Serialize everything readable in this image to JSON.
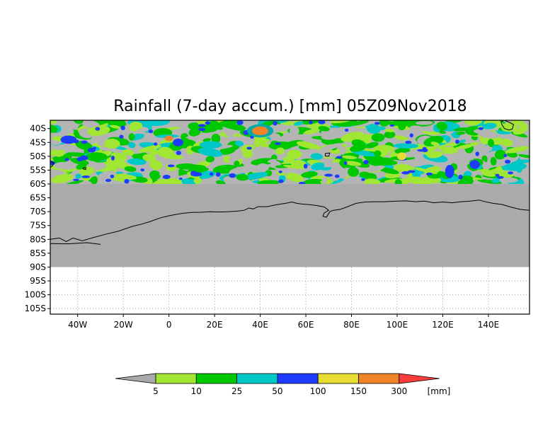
{
  "title": "Rainfall (7-day accum.) [mm] 05Z09Nov2018",
  "map": {
    "lon_range": [
      -52,
      158
    ],
    "lat_range": [
      -37,
      -107
    ],
    "data_lat_bounds": [
      -37,
      -60
    ],
    "nodata_lat_bounds": [
      -60,
      -90
    ],
    "nodata_color": "#aaaaaa",
    "background_color": "#ffffff",
    "lat_ticks": [
      {
        "value": -40,
        "label": "40S"
      },
      {
        "value": -45,
        "label": "45S"
      },
      {
        "value": -50,
        "label": "50S"
      },
      {
        "value": -55,
        "label": "55S"
      },
      {
        "value": -60,
        "label": "60S"
      },
      {
        "value": -65,
        "label": "65S"
      },
      {
        "value": -70,
        "label": "70S"
      },
      {
        "value": -75,
        "label": "75S"
      },
      {
        "value": -80,
        "label": "80S"
      },
      {
        "value": -85,
        "label": "85S"
      },
      {
        "value": -90,
        "label": "90S"
      },
      {
        "value": -95,
        "label": "95S"
      },
      {
        "value": -100,
        "label": "100S"
      },
      {
        "value": -105,
        "label": "105S"
      }
    ],
    "lon_ticks": [
      {
        "value": -40,
        "label": "40W"
      },
      {
        "value": -20,
        "label": "20W"
      },
      {
        "value": 0,
        "label": "0"
      },
      {
        "value": 20,
        "label": "20E"
      },
      {
        "value": 40,
        "label": "40E"
      },
      {
        "value": 60,
        "label": "60E"
      },
      {
        "value": 80,
        "label": "80E"
      },
      {
        "value": 100,
        "label": "100E"
      },
      {
        "value": 120,
        "label": "120E"
      },
      {
        "value": 140,
        "label": "140E"
      }
    ],
    "coastline_antarctica": [
      [
        -52,
        -80
      ],
      [
        -48,
        -79.5
      ],
      [
        -45,
        -80.8
      ],
      [
        -42,
        -79.5
      ],
      [
        -38,
        -80.5
      ],
      [
        -33,
        -79.3
      ],
      [
        -28,
        -78.2
      ],
      [
        -22,
        -77
      ],
      [
        -16,
        -75.3
      ],
      [
        -12,
        -74.5
      ],
      [
        -8,
        -73.5
      ],
      [
        -4,
        -72.3
      ],
      [
        0,
        -71.5
      ],
      [
        3,
        -71
      ],
      [
        6,
        -70.6
      ],
      [
        10,
        -70.3
      ],
      [
        14,
        -70.2
      ],
      [
        18,
        -70
      ],
      [
        22,
        -70.1
      ],
      [
        26,
        -70
      ],
      [
        30,
        -69.8
      ],
      [
        33,
        -69.5
      ],
      [
        35,
        -68.7
      ],
      [
        37,
        -69
      ],
      [
        39,
        -68.2
      ],
      [
        43,
        -68.2
      ],
      [
        47,
        -67.5
      ],
      [
        51,
        -67
      ],
      [
        54,
        -66.5
      ],
      [
        56,
        -67
      ],
      [
        58,
        -67.2
      ],
      [
        62,
        -67.5
      ],
      [
        65,
        -67.8
      ],
      [
        68,
        -68.3
      ],
      [
        70,
        -69.5
      ],
      [
        68,
        -70.5
      ],
      [
        67.5,
        -71.7
      ],
      [
        69,
        -72
      ],
      [
        70.5,
        -70
      ],
      [
        72,
        -69.5
      ],
      [
        75,
        -69.2
      ],
      [
        78,
        -68.3
      ],
      [
        82,
        -67
      ],
      [
        86,
        -66.5
      ],
      [
        90,
        -66.4
      ],
      [
        94,
        -66.4
      ],
      [
        100,
        -66.2
      ],
      [
        104,
        -66.1
      ],
      [
        108,
        -66.4
      ],
      [
        112,
        -66.2
      ],
      [
        116,
        -66.8
      ],
      [
        120,
        -66.5
      ],
      [
        124,
        -66.8
      ],
      [
        128,
        -66.4
      ],
      [
        132,
        -66.2
      ],
      [
        136,
        -65.8
      ],
      [
        138,
        -66.3
      ],
      [
        142,
        -67
      ],
      [
        146,
        -67.4
      ],
      [
        150,
        -68.4
      ],
      [
        154,
        -69.2
      ],
      [
        158,
        -69.5
      ]
    ],
    "coastline_ross": [
      [
        -52,
        -81.5
      ],
      [
        -44,
        -81.6
      ],
      [
        -36,
        -81.2
      ],
      [
        -30,
        -81.8
      ]
    ],
    "coastline_south_america": [
      [
        -52,
        -51.8
      ],
      [
        -50.5,
        -52.4
      ],
      [
        -51.2,
        -53.6
      ],
      [
        -52,
        -54
      ]
    ],
    "coastline_south_georgia": [
      [
        -37.5,
        -54.2
      ],
      [
        -36.3,
        -54.2
      ],
      [
        -36.5,
        -54.8
      ],
      [
        -37.5,
        -54.6
      ]
    ],
    "coastline_kerguelen": [
      [
        68.5,
        -49
      ],
      [
        70.5,
        -48.8
      ],
      [
        70,
        -50
      ],
      [
        68.5,
        -49.9
      ]
    ],
    "coastline_australia": [
      [
        146.8,
        -37
      ],
      [
        148.5,
        -37.5
      ],
      [
        151,
        -38.5
      ],
      [
        150.5,
        -40.2
      ],
      [
        149,
        -40.5
      ],
      [
        147,
        -40
      ],
      [
        146,
        -38.7
      ],
      [
        145.5,
        -37.5
      ]
    ],
    "rain_blobs": [
      {
        "lon": 40,
        "lat": -40.8,
        "rx": 3.6,
        "ry": 1.6,
        "color": "#f08228"
      },
      {
        "lon": 40,
        "lat": -40.8,
        "rx": 5.8,
        "ry": 2.4,
        "color": "#0aa"
      },
      {
        "lon": 0,
        "lat": -43.5,
        "rx": 1.8,
        "ry": 1.0,
        "color": "#f08228"
      },
      {
        "lon": 4,
        "lat": -45,
        "rx": 2.3,
        "ry": 1.4,
        "color": "#1e3cff"
      },
      {
        "lon": 102,
        "lat": -50,
        "rx": 2.0,
        "ry": 1.4,
        "color": "#e6dc32"
      },
      {
        "lon": 123,
        "lat": -55.5,
        "rx": 2.0,
        "ry": 2.4,
        "color": "#1e3cff"
      },
      {
        "lon": 12,
        "lat": -56.5,
        "rx": 2.5,
        "ry": 0.8,
        "color": "#1e3cff"
      },
      {
        "lon": -44,
        "lat": -44,
        "rx": 3.5,
        "ry": 1.5,
        "color": "#1e3cff"
      },
      {
        "lon": 134,
        "lat": -53,
        "rx": 2.2,
        "ry": 1.6,
        "color": "#1e3cff"
      }
    ]
  },
  "colorbar": {
    "unit": "[mm]",
    "levels": [
      "5",
      "10",
      "25",
      "50",
      "100",
      "150",
      "300"
    ],
    "colors": [
      "#aaaaaa",
      "#a0e632",
      "#00c800",
      "#00c8c8",
      "#1e3cff",
      "#e6dc32",
      "#f08228",
      "#fa3c3c"
    ]
  }
}
